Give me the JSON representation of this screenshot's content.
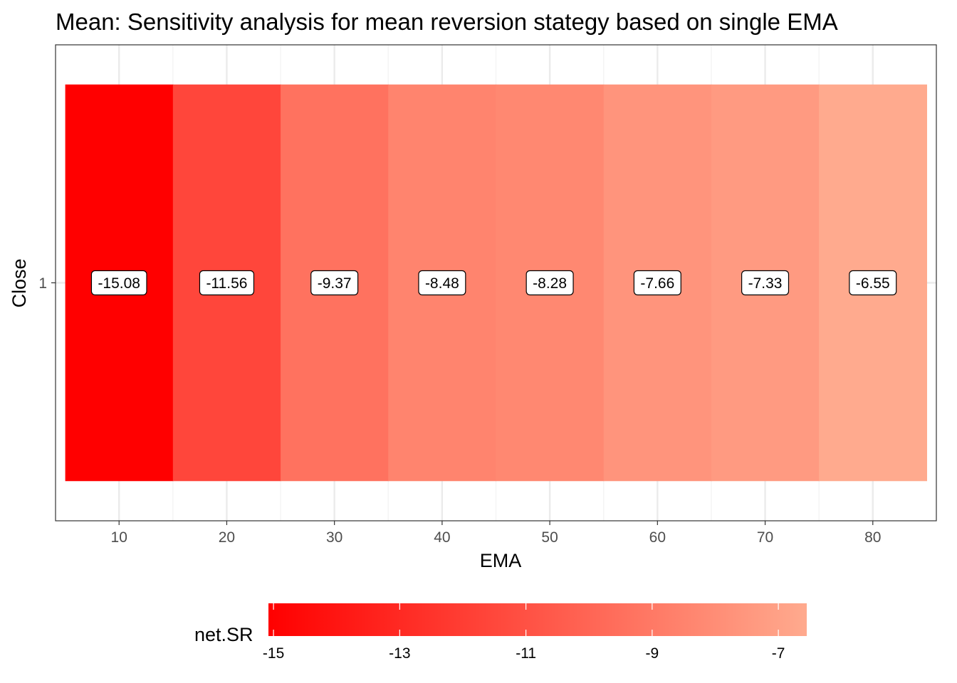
{
  "chart_data": {
    "type": "heatmap",
    "title": "Mean: Sensitivity analysis for mean reversion stategy based on single EMA",
    "xlabel": "EMA",
    "ylabel": "Close",
    "x": [
      10,
      20,
      30,
      40,
      50,
      60,
      70,
      80
    ],
    "y": [
      1
    ],
    "values": [
      -15.08,
      -11.56,
      -9.37,
      -8.48,
      -8.28,
      -7.66,
      -7.33,
      -6.55
    ],
    "labels": [
      "-15.08",
      "-11.56",
      "-9.37",
      "-8.48",
      "-8.28",
      "-7.66",
      "-7.33",
      "-6.55"
    ],
    "xlim": [
      4.1,
      85.9
    ],
    "ylim": [
      0.4,
      1.6
    ],
    "x_ticks": [
      10,
      20,
      30,
      40,
      50,
      60,
      70,
      80
    ],
    "y_ticks": [
      1
    ],
    "grid": true,
    "legend": {
      "title": "net.SR",
      "position": "bottom",
      "range": [
        -15.08,
        -6.55
      ],
      "ticks": [
        -15,
        -13,
        -11,
        -9,
        -7
      ],
      "low_color": "#ff0000",
      "high_color": "#ffaa8e"
    }
  }
}
